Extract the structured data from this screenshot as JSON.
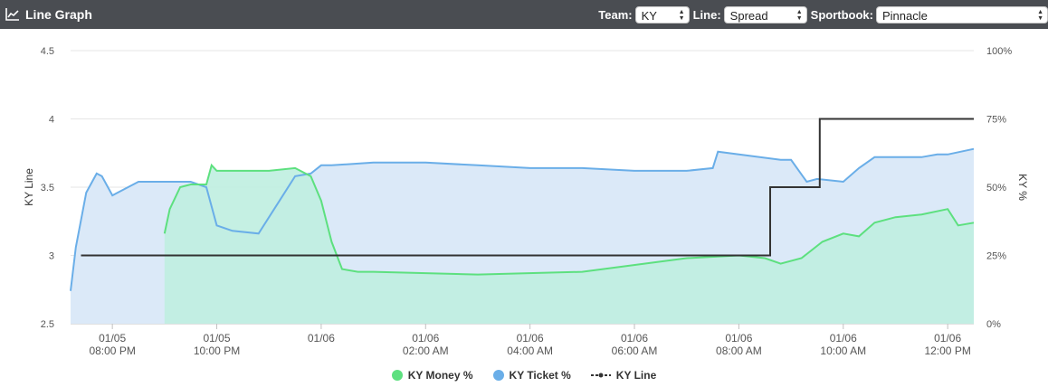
{
  "header": {
    "title": "Line Graph",
    "icon": "line-chart-icon",
    "team_label": "Team:",
    "team_value": "KY",
    "line_label": "Line:",
    "line_value": "Spread",
    "sportsbook_label": "Sportbook:",
    "sportsbook_value": "Pinnacle"
  },
  "colors": {
    "header_bg": "#4a4d52",
    "money": "#5de07f",
    "money_fill": "#bfeee0",
    "money_fill_top": "#d5fbd9",
    "ticket": "#6aaee8",
    "ticket_fill": "#dbe9f8",
    "line": "#333333"
  },
  "chart_data": {
    "type": "line",
    "x_tick_labels": [
      [
        "01/05",
        "08:00 PM"
      ],
      [
        "01/05",
        "10:00 PM"
      ],
      [
        "01/06",
        ""
      ],
      [
        "01/06",
        "02:00 AM"
      ],
      [
        "01/06",
        "04:00 AM"
      ],
      [
        "01/06",
        "06:00 AM"
      ],
      [
        "01/06",
        "08:00 AM"
      ],
      [
        "01/06",
        "10:00 AM"
      ],
      [
        "01/06",
        "12:00 PM"
      ]
    ],
    "x_tick_hours": [
      20,
      22,
      24,
      26,
      28,
      30,
      32,
      34,
      36
    ],
    "xlim": [
      19.2,
      36.5
    ],
    "ylabel_left": "KY Line",
    "ylim_left": [
      2.5,
      4.5
    ],
    "yticks_left": [
      "2.5",
      "3",
      "3.5",
      "4",
      "4.5"
    ],
    "ylabel_right": "KY %",
    "ylim_right": [
      0,
      100
    ],
    "yticks_right": [
      "0%",
      "25%",
      "50%",
      "75%",
      "100%"
    ],
    "legend": [
      "KY Money %",
      "KY Ticket %",
      "KY Line"
    ],
    "legend_position": "bottom-center",
    "series": [
      {
        "name": "KY Money %",
        "axis": "right",
        "x": [
          21.0,
          21.1,
          21.3,
          21.5,
          21.8,
          21.9,
          22.0,
          22.2,
          23.0,
          23.5,
          23.8,
          24.0,
          24.2,
          24.4,
          24.7,
          25.0,
          27.0,
          29.0,
          31.0,
          32.0,
          32.5,
          32.8,
          33.2,
          33.6,
          34.0,
          34.3,
          34.6,
          35.0,
          35.5,
          36.0,
          36.2,
          36.5
        ],
        "values": [
          33,
          42,
          50,
          51,
          51,
          58,
          56,
          56,
          56,
          57,
          54,
          45,
          30,
          20,
          19,
          19,
          18,
          19,
          24,
          25,
          24,
          22,
          24,
          30,
          33,
          32,
          37,
          39,
          40,
          42,
          36,
          37
        ]
      },
      {
        "name": "KY Ticket %",
        "axis": "right",
        "x": [
          19.2,
          19.3,
          19.5,
          19.7,
          19.8,
          20.0,
          20.5,
          21.0,
          21.5,
          21.8,
          22.0,
          22.3,
          22.8,
          23.2,
          23.5,
          23.8,
          24.0,
          24.2,
          25.0,
          26.0,
          27.0,
          28.0,
          29.0,
          30.0,
          31.0,
          31.5,
          31.6,
          32.0,
          32.4,
          32.8,
          33.0,
          33.3,
          33.5,
          34.0,
          34.3,
          34.6,
          35.0,
          35.5,
          35.8,
          36.0,
          36.5
        ],
        "values": [
          12,
          28,
          48,
          55,
          54,
          47,
          52,
          52,
          52,
          50,
          36,
          34,
          33,
          45,
          54,
          55,
          58,
          58,
          59,
          59,
          58,
          57,
          57,
          56,
          56,
          57,
          63,
          62,
          61,
          60,
          60,
          52,
          53,
          52,
          57,
          61,
          61,
          61,
          62,
          62,
          64
        ]
      },
      {
        "name": "KY Line",
        "axis": "left",
        "x": [
          19.4,
          32.6,
          32.6,
          33.55,
          33.55,
          36.5
        ],
        "values": [
          3.0,
          3.0,
          3.5,
          3.5,
          4.0,
          4.0
        ]
      }
    ]
  }
}
